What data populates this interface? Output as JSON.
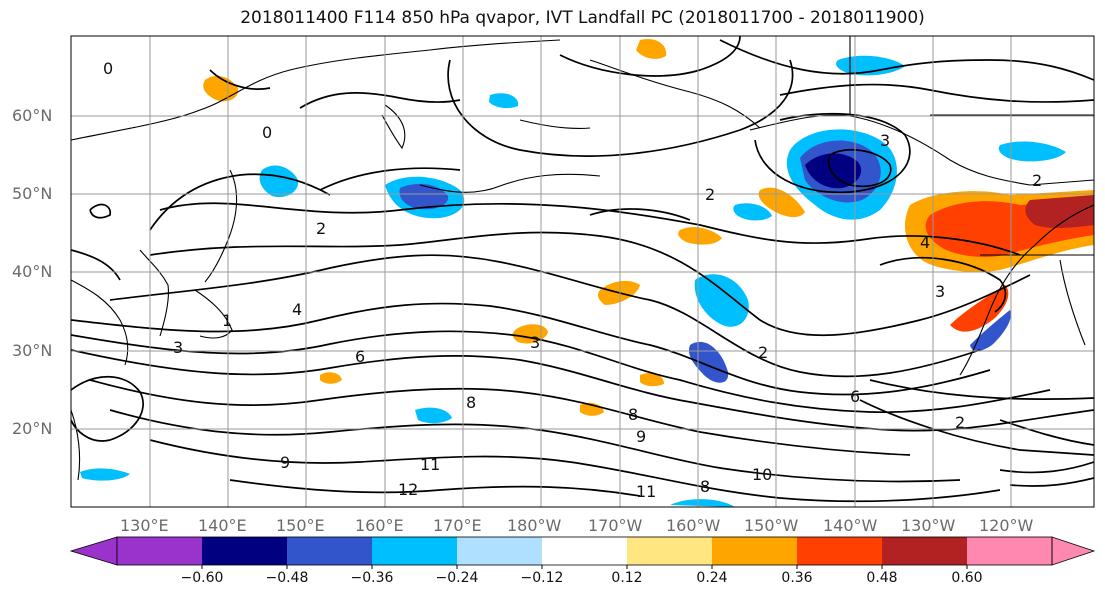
{
  "title": "2018011400 F114 850 hPa qvapor, IVT Landfall PC (2018011700 - 2018011900)",
  "lat_labels": [
    "60°N",
    "50°N",
    "40°N",
    "30°N",
    "20°N"
  ],
  "lon_labels": [
    "130°E",
    "140°E",
    "150°E",
    "160°E",
    "170°E",
    "180°W",
    "170°W",
    "160°W",
    "150°W",
    "140°W",
    "130°W",
    "120°W"
  ],
  "colorbar": {
    "ticks": [
      "−0.60",
      "−0.48",
      "−0.36",
      "−0.24",
      "−0.12",
      "0.12",
      "0.24",
      "0.36",
      "0.48",
      "0.60"
    ],
    "colors": [
      "#9933cc",
      "#000080",
      "#3355cc",
      "#00bfff",
      "#b0e0ff",
      "#ffffff",
      "#ffe680",
      "#ffa500",
      "#ff4000",
      "#b22222",
      "#ff88b0"
    ]
  },
  "contour_labels": [
    "0",
    "0",
    "2",
    "4",
    "3",
    "1",
    "6",
    "8",
    "9",
    "11",
    "12",
    "3",
    "2",
    "2",
    "3",
    "8",
    "9",
    "8",
    "10",
    "11",
    "2",
    "2",
    "6",
    "3",
    "4"
  ],
  "colors": {
    "land_outline": "#000000",
    "contour": "#000000",
    "grid": "#999999"
  }
}
